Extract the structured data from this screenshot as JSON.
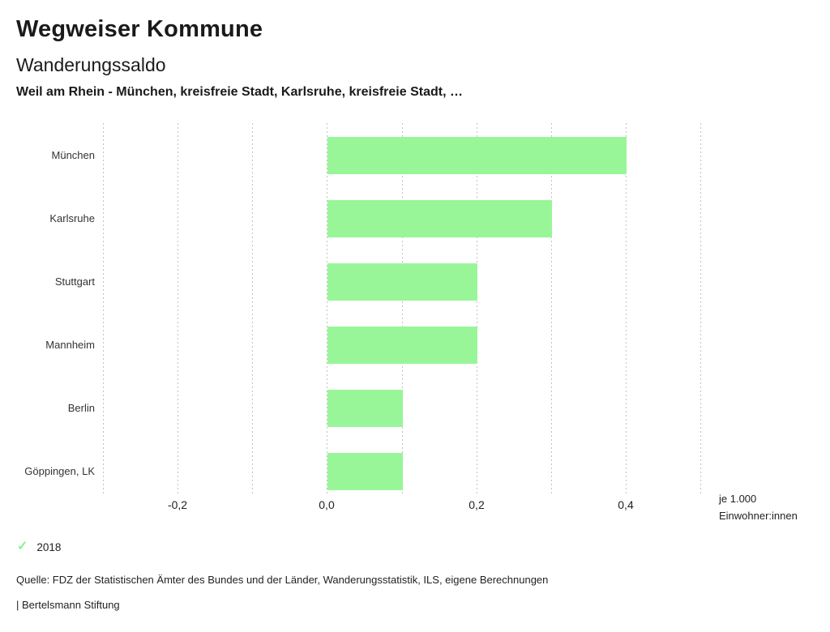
{
  "header": {
    "title": "Wegweiser Kommune",
    "subtitle": "Wanderungssaldo",
    "context": "Weil am Rhein - München, kreisfreie Stadt, Karlsruhe, kreisfreie Stadt, …"
  },
  "chart_data": {
    "type": "bar",
    "orientation": "horizontal",
    "title": "Wanderungssaldo",
    "categories": [
      "München",
      "Karlsruhe",
      "Stuttgart",
      "Mannheim",
      "Berlin",
      "Göppingen, LK"
    ],
    "values": [
      0.4,
      0.3,
      0.2,
      0.2,
      0.1,
      0.1
    ],
    "xlim": [
      -0.3,
      0.5
    ],
    "gridline_step": 0.1,
    "grid": true,
    "ticks": [
      {
        "value": -0.2,
        "label": "-0,2"
      },
      {
        "value": 0.0,
        "label": "0,0"
      },
      {
        "value": 0.2,
        "label": "0,2"
      },
      {
        "value": 0.4,
        "label": "0,4"
      }
    ],
    "unit_line1": "je 1.000",
    "unit_line2": "Einwohner:innen",
    "bar_color": "#98f698",
    "grid_color": "#c2c2c2",
    "legend_position": "bottom-left"
  },
  "legend": {
    "check_icon": "✓",
    "check_color": "#8fee8f",
    "year_label": "2018"
  },
  "footer": {
    "source": "Quelle: FDZ der Statistischen Ämter des Bundes und der Länder, Wanderungsstatistik, ILS, eigene Berechnungen",
    "branding": "| Bertelsmann Stiftung"
  }
}
